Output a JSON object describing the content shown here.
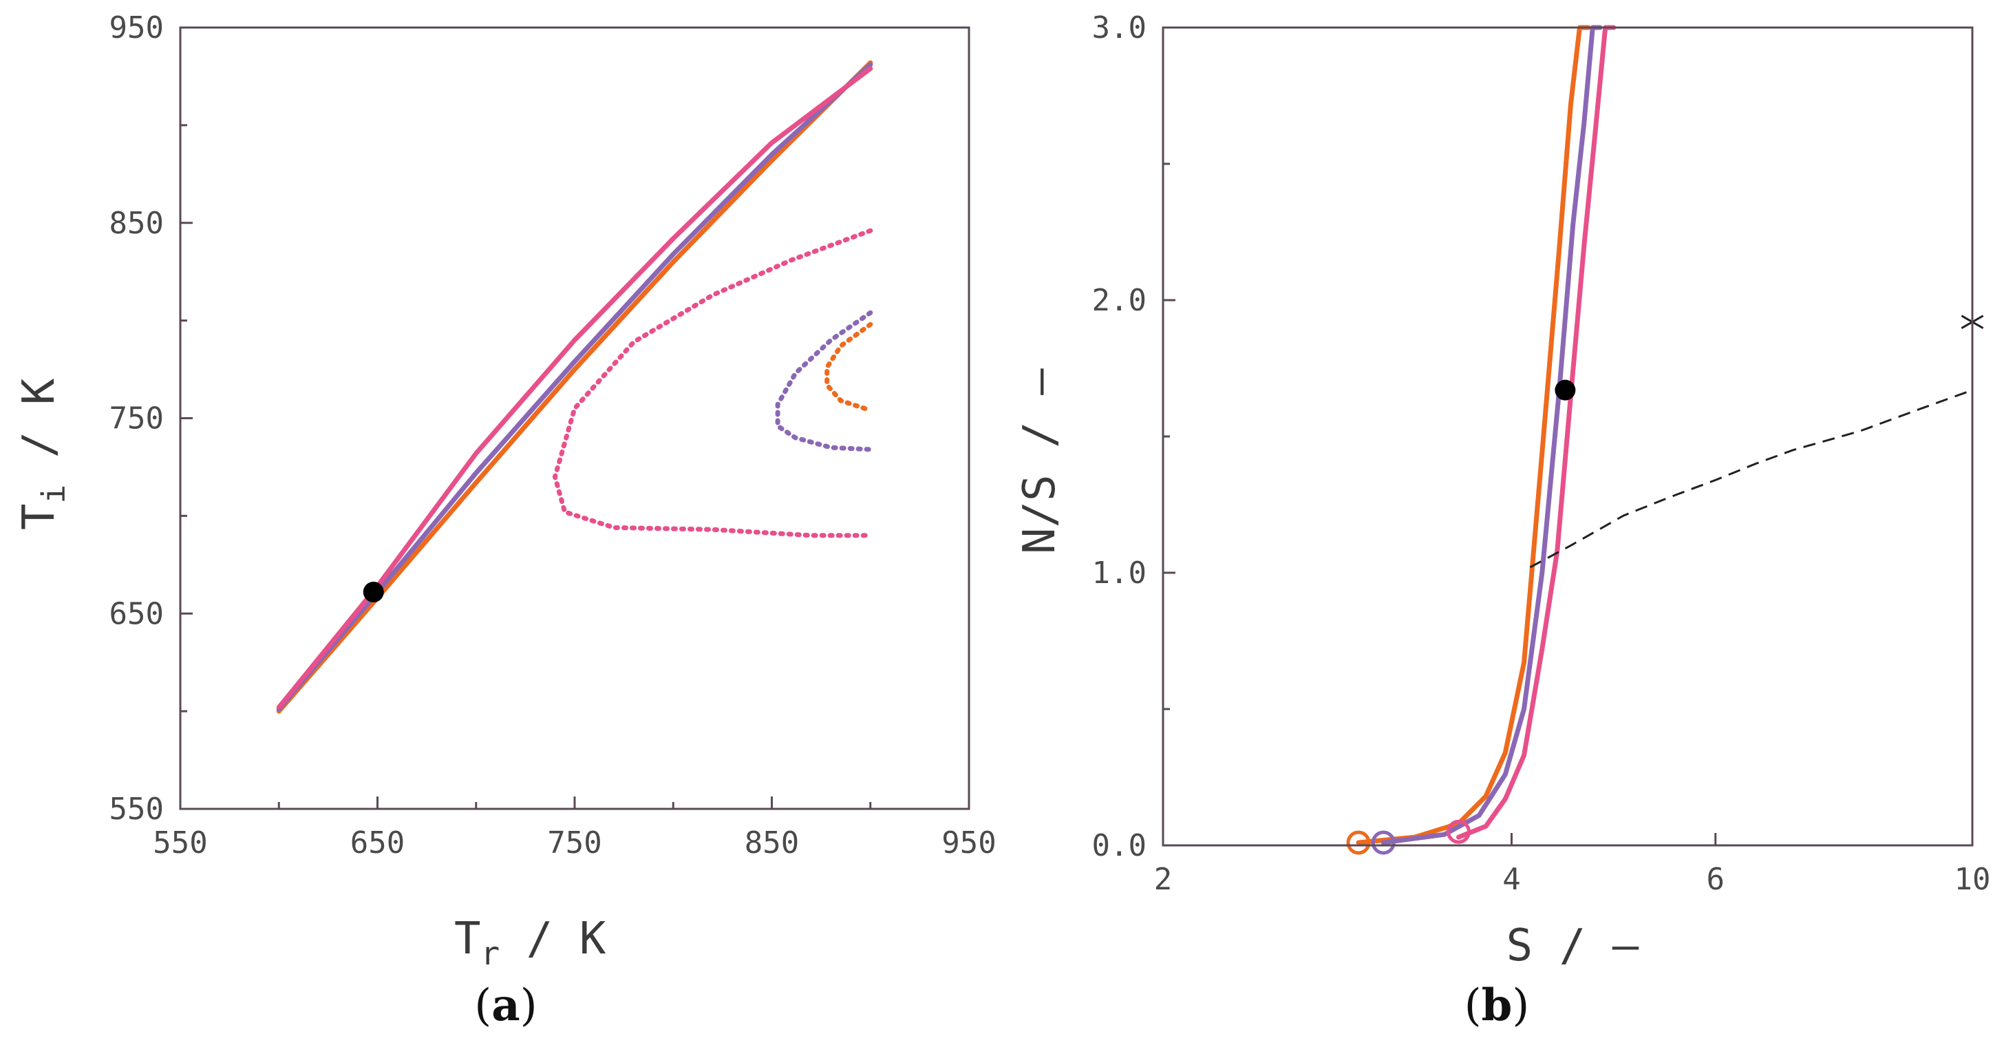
{
  "chart_data": [
    {
      "id": "a",
      "type": "line",
      "panel_label": {
        "open": "(",
        "letter": "a",
        "close": ")"
      },
      "xlabel": {
        "main": "T",
        "sub": "r",
        "unit": " / K"
      },
      "ylabel": {
        "main": "T",
        "sub": "i",
        "unit": " / K"
      },
      "xlim": [
        550,
        950
      ],
      "ylim": [
        550,
        950
      ],
      "x_major_ticks": [
        550,
        650,
        750,
        850,
        950
      ],
      "x_minor_ticks": [
        600,
        700,
        800,
        900
      ],
      "y_major_ticks": [
        550,
        650,
        750,
        850,
        950
      ],
      "y_minor_ticks": [
        600,
        700,
        800,
        900
      ],
      "x_tick_labels": [
        "550",
        "650",
        "750",
        "850",
        "950"
      ],
      "y_tick_labels": [
        "550",
        "650",
        "750",
        "850",
        "950"
      ],
      "series": [
        {
          "name": "orange-stable",
          "color": "#ee6a1c",
          "style": "solid",
          "x": [
            600,
            650,
            700,
            750,
            800,
            850,
            900
          ],
          "y": [
            600,
            658,
            717,
            775,
            830,
            882,
            932
          ]
        },
        {
          "name": "purple-stable",
          "color": "#8a68b6",
          "style": "solid",
          "x": [
            600,
            650,
            700,
            750,
            800,
            850,
            900
          ],
          "y": [
            601,
            661,
            722,
            779,
            834,
            885,
            931
          ]
        },
        {
          "name": "pink-stable",
          "color": "#e8508a",
          "style": "solid",
          "x": [
            600,
            650,
            700,
            750,
            800,
            850,
            900
          ],
          "y": [
            602,
            664,
            732,
            790,
            842,
            891,
            929
          ]
        },
        {
          "name": "pink-unstable",
          "color": "#e8508a",
          "style": "dotted",
          "x": [
            900,
            860,
            820,
            780,
            750,
            740,
            745,
            770,
            820,
            870,
            900
          ],
          "y": [
            846,
            831,
            813,
            789,
            755,
            720,
            702,
            694,
            693,
            690,
            690
          ]
        },
        {
          "name": "purple-unstable",
          "color": "#8a68b6",
          "style": "dotted",
          "x": [
            900,
            880,
            862,
            853,
            853,
            862,
            880,
            900
          ],
          "y": [
            804,
            790,
            773,
            757,
            746,
            740,
            735,
            734
          ]
        },
        {
          "name": "orange-unstable",
          "color": "#ee6a1c",
          "style": "dotted",
          "x": [
            900,
            885,
            878,
            878,
            885,
            900
          ],
          "y": [
            798,
            787,
            776,
            767,
            759,
            754
          ]
        }
      ],
      "markers": [
        {
          "name": "operating-point",
          "x": 648,
          "y": 661,
          "style": "filled",
          "color": "#000000"
        }
      ]
    },
    {
      "id": "b",
      "type": "line",
      "panel_label": {
        "open": "(",
        "letter": "b",
        "close": ")"
      },
      "xlabel": {
        "main": "S",
        "unit": " / –"
      },
      "ylabel": {
        "main": "N/S",
        "unit": " / –"
      },
      "xlim": [
        2,
        10
      ],
      "ylim": [
        0,
        3
      ],
      "x_major_ticks": [
        2,
        4,
        6,
        10
      ],
      "x_tick_labels": [
        "2",
        "4",
        "6",
        "10"
      ],
      "y_major_ticks": [
        0,
        1,
        2,
        3
      ],
      "y_minor_ticks": [
        0.5,
        1.5,
        2.5
      ],
      "y_tick_labels": [
        "0.0",
        "1.0",
        "2.0",
        "3.0"
      ],
      "series": [
        {
          "name": "orange",
          "color": "#ee6a1c",
          "style": "solid",
          "x": [
            2.95,
            3.3,
            3.6,
            3.8,
            3.95,
            4.1,
            4.25,
            4.4,
            4.5,
            4.58,
            4.66
          ],
          "y": [
            0.01,
            0.03,
            0.08,
            0.18,
            0.34,
            0.67,
            1.44,
            2.2,
            2.72,
            3.0,
            3.0
          ]
        },
        {
          "name": "purple",
          "color": "#8a68b6",
          "style": "solid",
          "x": [
            3.1,
            3.5,
            3.75,
            3.95,
            4.1,
            4.25,
            4.4,
            4.52,
            4.62,
            4.7,
            4.77
          ],
          "y": [
            0.01,
            0.04,
            0.11,
            0.26,
            0.5,
            1.0,
            1.68,
            2.28,
            2.65,
            3.0,
            3.0
          ]
        },
        {
          "name": "pink",
          "color": "#e8508a",
          "style": "solid",
          "x": [
            3.6,
            3.8,
            3.95,
            4.1,
            4.25,
            4.38,
            4.5,
            4.62,
            4.72,
            4.82,
            4.9
          ],
          "y": [
            0.03,
            0.07,
            0.17,
            0.33,
            0.72,
            1.08,
            1.65,
            2.2,
            2.6,
            3.0,
            3.0
          ]
        },
        {
          "name": "reference",
          "color": "#222222",
          "style": "dashed",
          "x": [
            4.15,
            4.5,
            5.0,
            5.5,
            6.0,
            6.5,
            7.0,
            8.0,
            9.0,
            10.0
          ],
          "y": [
            1.02,
            1.1,
            1.21,
            1.28,
            1.34,
            1.4,
            1.45,
            1.52,
            1.6,
            1.67
          ]
        }
      ],
      "markers": [
        {
          "name": "operating-point",
          "x": 4.45,
          "y": 1.67,
          "style": "filled",
          "color": "#000000"
        },
        {
          "name": "orange-open",
          "x": 2.95,
          "y": 0.01,
          "style": "open",
          "color": "#ee6a1c"
        },
        {
          "name": "purple-open",
          "x": 3.1,
          "y": 0.01,
          "style": "open",
          "color": "#8a68b6"
        },
        {
          "name": "pink-open",
          "x": 3.6,
          "y": 0.05,
          "style": "open",
          "color": "#e8508a"
        },
        {
          "name": "asterisk",
          "x": 10.0,
          "y": 1.92,
          "style": "asterisk",
          "color": "#222222"
        }
      ]
    }
  ]
}
